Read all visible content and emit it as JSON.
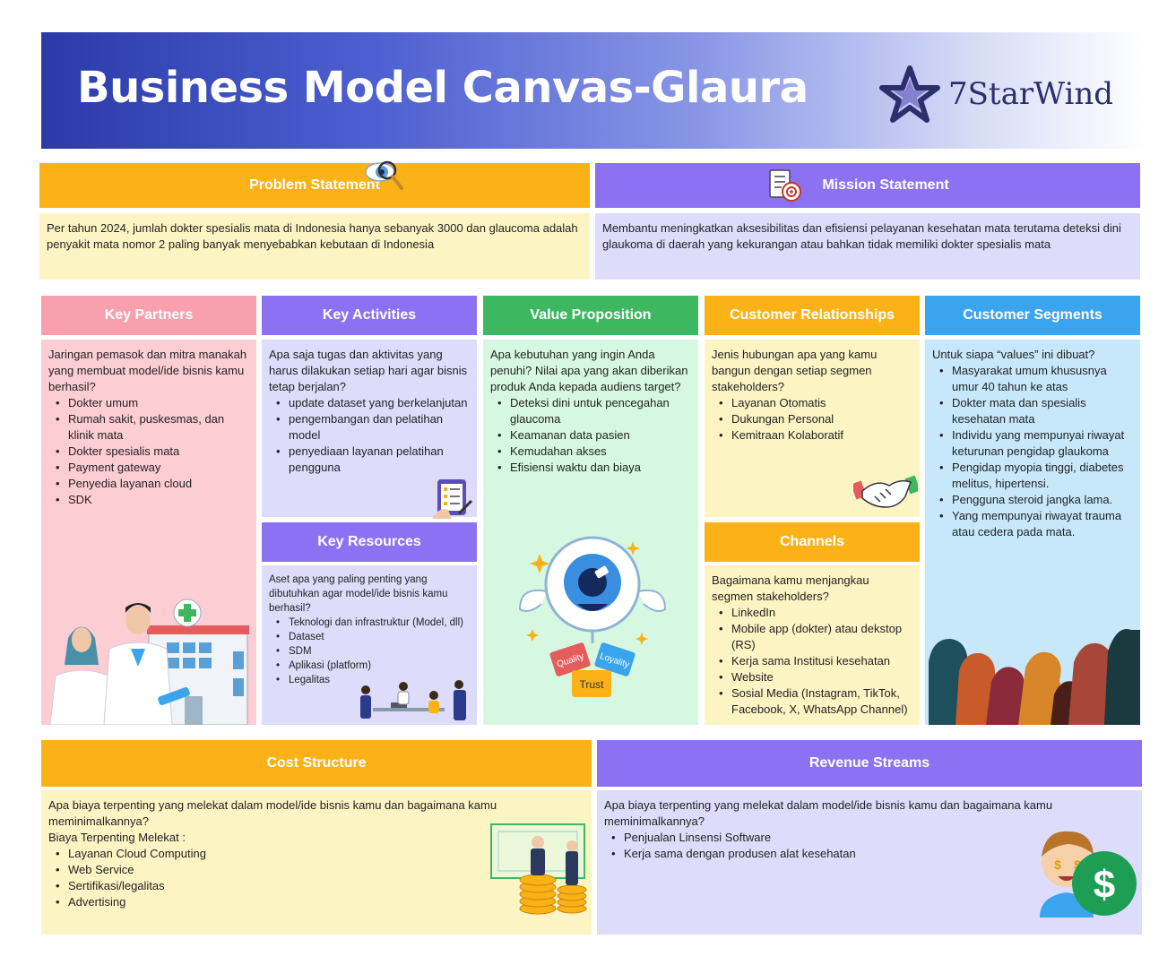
{
  "banner": {
    "title": "Business Model Canvas-Glaura",
    "logo_text": "7StarWind"
  },
  "problem": {
    "title": "Problem Statement",
    "text": "Per tahun 2024, jumlah dokter spesialis mata di Indonesia hanya sebanyak 3000 dan glaucoma adalah penyakit mata nomor 2 paling banyak menyebabkan kebutaan di Indonesia"
  },
  "mission": {
    "title": "Mission Statement",
    "text": "Membantu meningkatkan aksesibilitas dan efisiensi pelayanan kesehatan mata terutama deteksi dini glaukoma di daerah yang kekurangan atau bahkan tidak memiliki dokter spesialis mata"
  },
  "key_partners": {
    "title": "Key Partners",
    "intro": "Jaringan pemasok dan mitra manakah yang membuat model/ide bisnis kamu berhasil?",
    "items": [
      "Dokter umum",
      "Rumah sakit, puskesmas, dan klinik mata",
      "Dokter spesialis mata",
      "Payment gateway",
      "Penyedia layanan cloud",
      "SDK"
    ]
  },
  "key_activities": {
    "title": "Key Activities",
    "intro": "Apa saja tugas dan aktivitas yang harus dilakukan setiap hari agar bisnis tetap berjalan?",
    "items": [
      "update dataset yang berkelanjutan",
      "pengembangan dan pelatihan model",
      "penyediaan layanan pelatihan pengguna"
    ]
  },
  "key_resources": {
    "title": "Key Resources",
    "intro": "Aset apa yang paling penting yang dibutuhkan agar model/ide bisnis kamu berhasil?",
    "items": [
      "Teknologi dan infrastruktur (Model, dll)",
      "Dataset",
      "SDM",
      "Aplikasi (platform)",
      "Legalitas"
    ]
  },
  "value_proposition": {
    "title": "Value Proposition",
    "intro": "Apa kebutuhan yang ingin Anda penuhi? Nilai apa yang akan diberikan produk Anda kepada audiens target?",
    "items": [
      "Deteksi dini untuk pencegahan glaucoma",
      "Keamanan data pasien",
      "Kemudahan akses",
      "Efisiensi waktu dan biaya"
    ],
    "tags": [
      "Quality",
      "Loyality",
      "Trust"
    ]
  },
  "customer_relationships": {
    "title": "Customer Relationships",
    "intro": "Jenis hubungan apa yang kamu bangun dengan setiap segmen stakeholders?",
    "items": [
      "Layanan Otomatis",
      "Dukungan Personal",
      "Kemitraan Kolaboratif"
    ]
  },
  "channels": {
    "title": "Channels",
    "intro": "Bagaimana kamu menjangkau segmen stakeholders?",
    "items": [
      "LinkedIn",
      "Mobile app (dokter) atau dekstop (RS)",
      "Kerja sama Institusi kesehatan",
      "Website",
      "Sosial Media (Instagram, TikTok, Facebook, X, WhatsApp Channel)"
    ]
  },
  "customer_segments": {
    "title": "Customer Segments",
    "intro": "Untuk siapa “values” ini dibuat?",
    "items": [
      "Masyarakat umum khususnya umur 40 tahun ke atas",
      "Dokter mata dan spesialis kesehatan mata",
      "Individu yang mempunyai riwayat keturunan pengidap glaukoma",
      "Pengidap myopia tinggi, diabetes melitus, hipertensi.",
      "Pengguna steroid jangka lama.",
      "Yang mempunyai riwayat trauma atau cedera pada mata."
    ]
  },
  "cost_structure": {
    "title": "Cost Structure",
    "intro": "Apa biaya terpenting yang melekat dalam model/ide bisnis kamu dan bagaimana kamu meminimalkannya?",
    "subtitle": "Biaya Terpenting Melekat :",
    "items": [
      "Layanan Cloud Computing",
      "Web Service",
      "Sertifikasi/legalitas",
      "Advertising"
    ]
  },
  "revenue_streams": {
    "title": "Revenue Streams",
    "intro": "Apa biaya terpenting yang melekat dalam model/ide bisnis kamu dan bagaimana kamu meminimalkannya?",
    "items": [
      "Penjualan Linsensi Software",
      "Kerja sama dengan produsen alat kesehatan"
    ]
  },
  "colors": {
    "orange": "#fbb216",
    "purple": "#8c72f2",
    "pink": "#f8a0ad",
    "green": "#3db860",
    "blue": "#3aa4ee"
  }
}
